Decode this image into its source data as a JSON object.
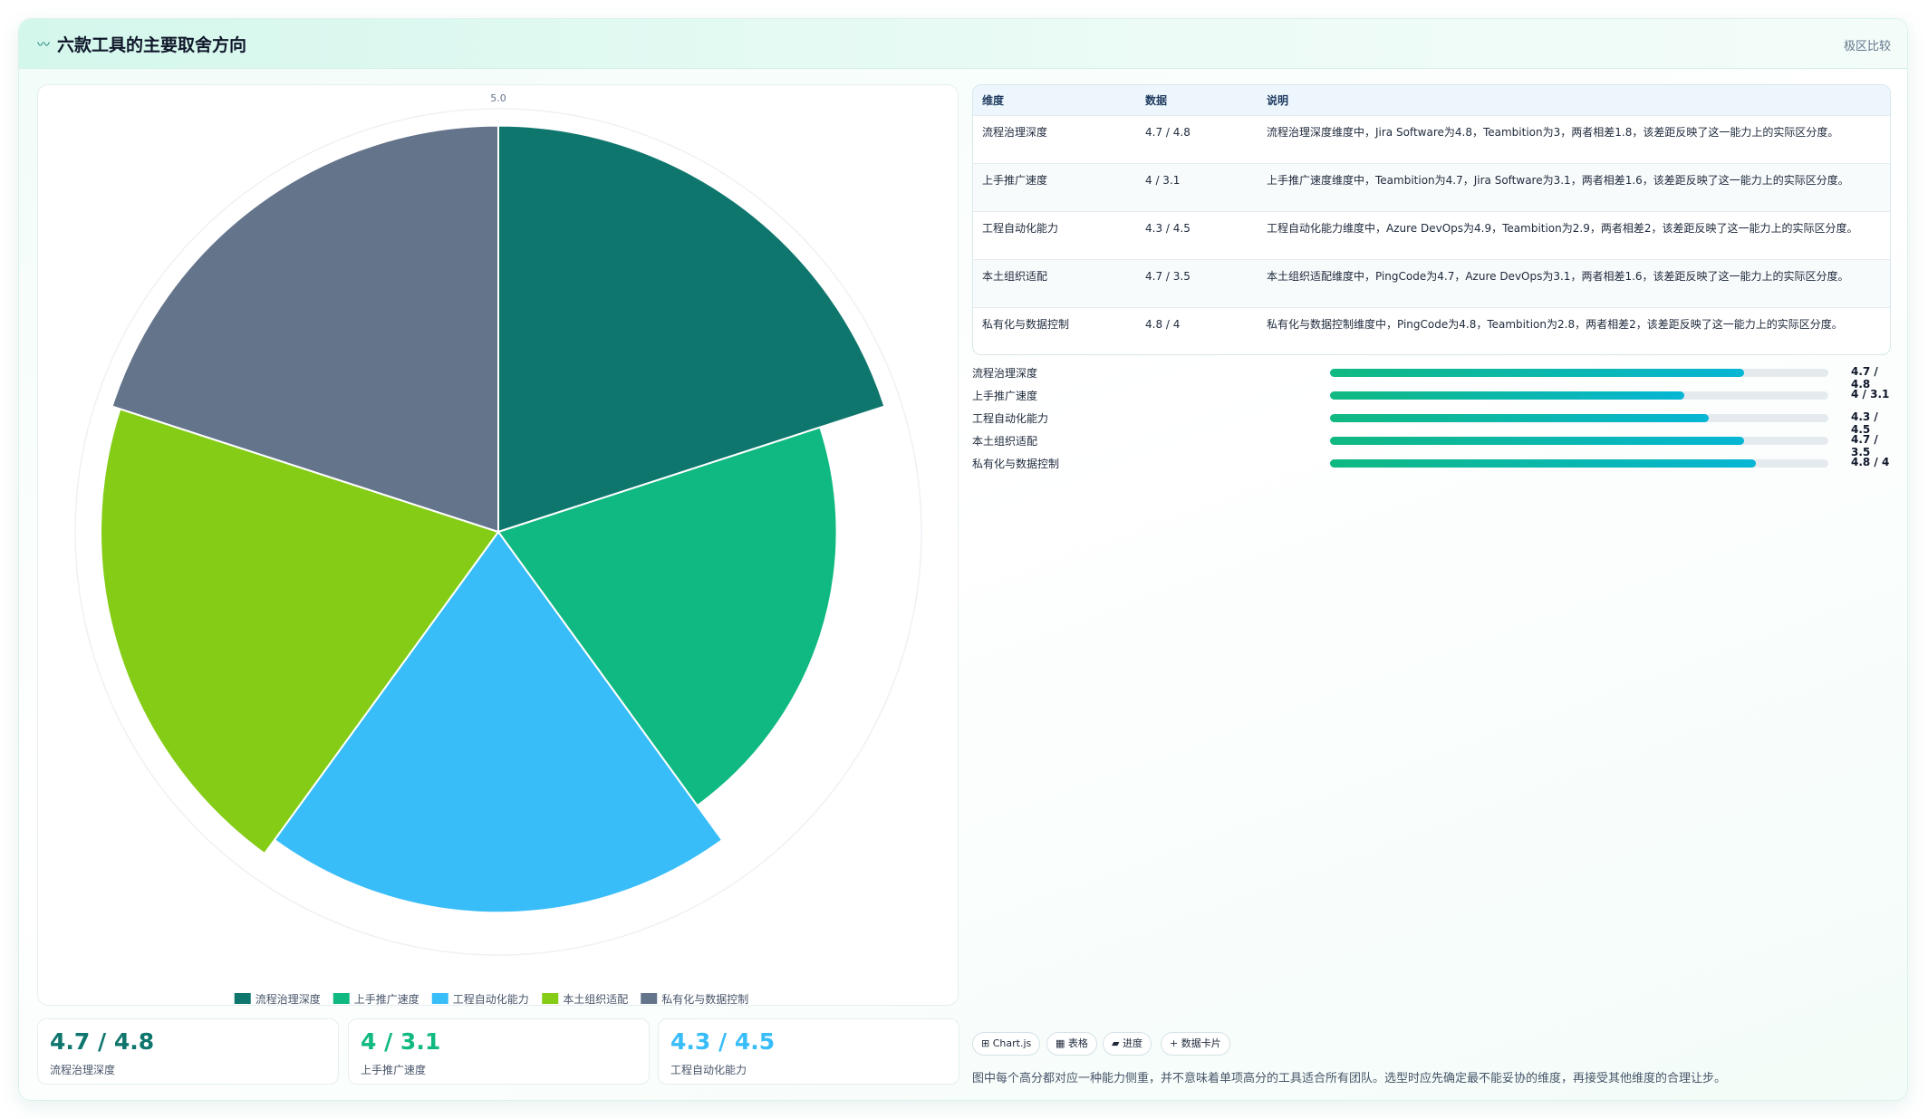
{
  "header": {
    "title_icon": "〰",
    "title": "六款工具的主要取舍方向",
    "tag": "极区比较"
  },
  "chart_data": {
    "type": "polarArea",
    "r_max_label": "5.0",
    "r_max": 5.0,
    "categories": [
      "流程治理深度",
      "上手推广速度",
      "工程自动化能力",
      "本土组织适配",
      "私有化与数据控制"
    ],
    "values": [
      4.8,
      4.0,
      4.5,
      4.7,
      4.8
    ],
    "colors": [
      "#0f766e",
      "#10b981",
      "#38bdf8",
      "#84cc16",
      "#64748b"
    ]
  },
  "table": {
    "headers": [
      "维度",
      "数据",
      "说明"
    ],
    "rows": [
      {
        "dim": "流程治理深度",
        "data": "4.7 / 4.8",
        "desc": "流程治理深度维度中，Jira Software为4.8，Teambition为3，两者相差1.8，该差距反映了这一能力上的实际区分度。"
      },
      {
        "dim": "上手推广速度",
        "data": "4 / 3.1",
        "desc": "上手推广速度维度中，Teambition为4.7，Jira Software为3.1，两者相差1.6，该差距反映了这一能力上的实际区分度。"
      },
      {
        "dim": "工程自动化能力",
        "data": "4.3 / 4.5",
        "desc": "工程自动化能力维度中，Azure DevOps为4.9，Teambition为2.9，两者相差2，该差距反映了这一能力上的实际区分度。"
      },
      {
        "dim": "本土组织适配",
        "data": "4.7 / 3.5",
        "desc": "本土组织适配维度中，PingCode为4.7，Azure DevOps为3.1，两者相差1.6，该差距反映了这一能力上的实际区分度。"
      },
      {
        "dim": "私有化与数据控制",
        "data": "4.8 / 4",
        "desc": "私有化与数据控制维度中，PingCode为4.8，Teambition为2.8，两者相差2，该差距反映了这一能力上的实际区分度。"
      }
    ]
  },
  "progress": [
    {
      "label": "流程治理深度",
      "value": "4.7 / 4.8",
      "fill": 0.83
    },
    {
      "label": "上手推广速度",
      "value": "4 / 3.1",
      "fill": 0.71
    },
    {
      "label": "工程自动化能力",
      "value": "4.3 / 4.5",
      "fill": 0.76
    },
    {
      "label": "本土组织适配",
      "value": "4.7 / 3.5",
      "fill": 0.83
    },
    {
      "label": "私有化与数据控制",
      "value": "4.8 / 4",
      "fill": 0.855
    }
  ],
  "kpis": [
    {
      "value": "4.7 / 4.8",
      "label": "流程治理深度",
      "color": "#0f766e"
    },
    {
      "value": "4 / 3.1",
      "label": "上手推广速度",
      "color": "#10b981"
    },
    {
      "value": "4.3 / 4.5",
      "label": "工程自动化能力",
      "color": "#38bdf8"
    }
  ],
  "chips": [
    "⊞ Chart.js",
    "▦ 表格",
    "▰ 进度",
    "+ 数据卡片"
  ],
  "footnote": "图中每个高分都对应一种能力侧重，并不意味着单项高分的工具适合所有团队。选型时应先确定最不能妥协的维度，再接受其他维度的合理让步。"
}
